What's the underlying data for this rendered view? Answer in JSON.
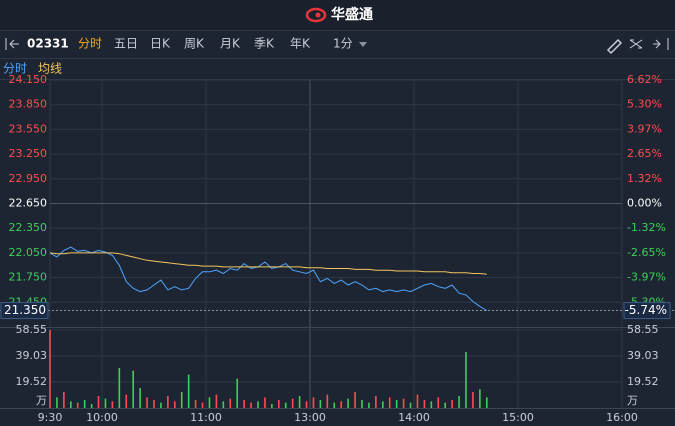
{
  "header": {
    "brand": "华盛通"
  },
  "toolbar": {
    "code": "02331",
    "tabs": [
      "分时",
      "五日",
      "日K",
      "周K",
      "月K",
      "季K",
      "年K"
    ],
    "interval": "1分"
  },
  "chart_data": [
    {
      "type": "line",
      "x": [
        0,
        4,
        8,
        12,
        16,
        20,
        24,
        28,
        32,
        36,
        40,
        44,
        48,
        52,
        56,
        60,
        64,
        68,
        72,
        76,
        80,
        84,
        88,
        92,
        96,
        100,
        104,
        108,
        112,
        116,
        120,
        124,
        128,
        132,
        136,
        140,
        144,
        148,
        152,
        156,
        160,
        164,
        168,
        172,
        176,
        180,
        184,
        188,
        192,
        196,
        200,
        204,
        208,
        212,
        216,
        220,
        224,
        228,
        232,
        236,
        240,
        244,
        248,
        252
      ],
      "xlim": [
        0,
        330
      ],
      "series": [
        {
          "name": "分时",
          "color": "#4da6ff",
          "values": [
            22.05,
            22.0,
            22.08,
            22.12,
            22.07,
            22.08,
            22.05,
            22.08,
            22.06,
            22.02,
            21.9,
            21.7,
            21.62,
            21.58,
            21.6,
            21.66,
            21.72,
            21.6,
            21.64,
            21.6,
            21.62,
            21.74,
            21.82,
            21.82,
            21.84,
            21.8,
            21.86,
            21.84,
            21.92,
            21.86,
            21.88,
            21.94,
            21.86,
            21.88,
            21.92,
            21.84,
            21.82,
            21.8,
            21.84,
            21.7,
            21.74,
            21.68,
            21.72,
            21.66,
            21.7,
            21.66,
            21.6,
            21.62,
            21.58,
            21.6,
            21.58,
            21.6,
            21.58,
            21.62,
            21.66,
            21.68,
            21.64,
            21.62,
            21.66,
            21.56,
            21.54,
            21.46,
            21.4,
            21.35
          ]
        },
        {
          "name": "均线",
          "color": "#f2c55c",
          "values": [
            22.05,
            22.04,
            22.04,
            22.05,
            22.05,
            22.05,
            22.05,
            22.05,
            22.05,
            22.05,
            22.04,
            22.02,
            22.0,
            21.98,
            21.96,
            21.95,
            21.94,
            21.93,
            21.92,
            21.91,
            21.9,
            21.9,
            21.89,
            21.89,
            21.89,
            21.88,
            21.88,
            21.88,
            21.88,
            21.88,
            21.88,
            21.88,
            21.88,
            21.88,
            21.88,
            21.88,
            21.88,
            21.87,
            21.87,
            21.87,
            21.86,
            21.86,
            21.86,
            21.86,
            21.85,
            21.85,
            21.85,
            21.84,
            21.84,
            21.84,
            21.83,
            21.83,
            21.83,
            21.83,
            21.82,
            21.82,
            21.82,
            21.82,
            21.81,
            21.81,
            21.81,
            21.8,
            21.8,
            21.79
          ]
        }
      ],
      "ylim": [
        21.15,
        24.15
      ],
      "yticks": [
        {
          "value": 24.15,
          "label": "24.150"
        },
        {
          "value": 23.85,
          "label": "23.850"
        },
        {
          "value": 23.55,
          "label": "23.550"
        },
        {
          "value": 23.25,
          "label": "23.250"
        },
        {
          "value": 22.95,
          "label": "22.950"
        },
        {
          "value": 22.65,
          "label": "22.650"
        },
        {
          "value": 22.35,
          "label": "22.350"
        },
        {
          "value": 22.05,
          "label": "22.050"
        },
        {
          "value": 21.75,
          "label": "21.750"
        },
        {
          "value": 21.45,
          "label": "21.450"
        }
      ],
      "y2lim": [
        -6.62,
        6.62
      ],
      "y2ticks": [
        {
          "value": 6.62,
          "label": "6.62%"
        },
        {
          "value": 5.3,
          "label": "5.30%"
        },
        {
          "value": 3.97,
          "label": "3.97%"
        },
        {
          "value": 2.65,
          "label": "2.65%"
        },
        {
          "value": 1.32,
          "label": "1.32%"
        },
        {
          "value": 0,
          "label": "0.00%"
        },
        {
          "value": -1.32,
          "label": "-1.32%"
        },
        {
          "value": -2.65,
          "label": "-2.65%"
        },
        {
          "value": -3.97,
          "label": "-3.97%"
        },
        {
          "value": -5.3,
          "label": "-5.30%"
        }
      ],
      "last_price": {
        "value": 21.35,
        "label": "21.350"
      },
      "last_change": {
        "value": -5.74,
        "label": "-5.74%"
      },
      "up_color": "#ff4d4d",
      "down_color": "#3ecf5a"
    },
    {
      "type": "bar",
      "x": [
        0,
        4,
        8,
        12,
        16,
        20,
        24,
        28,
        32,
        36,
        40,
        44,
        48,
        52,
        56,
        60,
        64,
        68,
        72,
        76,
        80,
        84,
        88,
        92,
        96,
        100,
        104,
        108,
        112,
        116,
        120,
        124,
        128,
        132,
        136,
        140,
        144,
        148,
        152,
        156,
        160,
        164,
        168,
        172,
        176,
        180,
        184,
        188,
        192,
        196,
        200,
        204,
        208,
        212,
        216,
        220,
        224,
        228,
        232,
        236,
        240,
        244,
        248,
        252
      ],
      "values": [
        58.55,
        8,
        12,
        5,
        4,
        6,
        3,
        9,
        7,
        5,
        30,
        10,
        28,
        15,
        8,
        6,
        4,
        9,
        5,
        12,
        25,
        6,
        4,
        8,
        10,
        5,
        7,
        22,
        6,
        4,
        5,
        8,
        3,
        6,
        4,
        7,
        9,
        5,
        8,
        6,
        10,
        4,
        5,
        7,
        12,
        6,
        4,
        9,
        5,
        8,
        6,
        7,
        4,
        10,
        6,
        5,
        8,
        4,
        6,
        9,
        42,
        12,
        14,
        8
      ],
      "colors": [
        "#ff4d4d",
        "#3ecf5a",
        "#ff4d4d",
        "#3ecf5a",
        "#ff4d4d",
        "#3ecf5a",
        "#3ecf5a",
        "#ff4d4d",
        "#3ecf5a",
        "#ff4d4d",
        "#3ecf5a",
        "#ff4d4d",
        "#3ecf5a",
        "#3ecf5a",
        "#ff4d4d",
        "#ff4d4d",
        "#3ecf5a",
        "#ff4d4d",
        "#ff4d4d",
        "#3ecf5a",
        "#3ecf5a",
        "#ff4d4d",
        "#ff4d4d",
        "#3ecf5a",
        "#ff4d4d",
        "#3ecf5a",
        "#ff4d4d",
        "#3ecf5a",
        "#ff4d4d",
        "#ff4d4d",
        "#3ecf5a",
        "#ff4d4d",
        "#3ecf5a",
        "#ff4d4d",
        "#3ecf5a",
        "#ff4d4d",
        "#3ecf5a",
        "#ff4d4d",
        "#ff4d4d",
        "#3ecf5a",
        "#ff4d4d",
        "#3ecf5a",
        "#ff4d4d",
        "#3ecf5a",
        "#ff4d4d",
        "#3ecf5a",
        "#3ecf5a",
        "#ff4d4d",
        "#3ecf5a",
        "#ff4d4d",
        "#3ecf5a",
        "#ff4d4d",
        "#3ecf5a",
        "#ff4d4d",
        "#ff4d4d",
        "#3ecf5a",
        "#ff4d4d",
        "#3ecf5a",
        "#ff4d4d",
        "#3ecf5a",
        "#3ecf5a",
        "#ff4d4d",
        "#3ecf5a",
        "#3ecf5a"
      ],
      "xlim": [
        0,
        330
      ],
      "xticks": [
        {
          "value": 0,
          "label": "9:30"
        },
        {
          "value": 30,
          "label": "10:00"
        },
        {
          "value": 90,
          "label": "11:00"
        },
        {
          "value": 150,
          "label": "13:00"
        },
        {
          "value": 210,
          "label": "14:00"
        },
        {
          "value": 270,
          "label": "15:00"
        },
        {
          "value": 330,
          "label": "16:00"
        }
      ],
      "ylim": [
        0,
        60
      ],
      "yticks": [
        58.55,
        39.03,
        19.52
      ],
      "unit": "万"
    }
  ]
}
